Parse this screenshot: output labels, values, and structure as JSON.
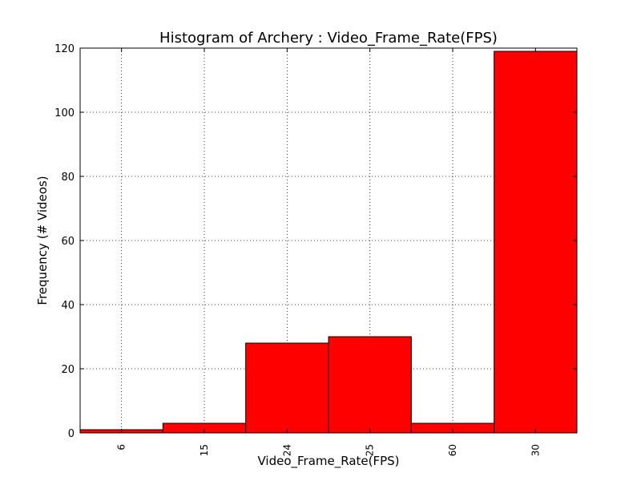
{
  "chart_data": {
    "type": "bar",
    "title": "Histogram of Archery : Video_Frame_Rate(FPS)",
    "xlabel": "Video_Frame_Rate(FPS)",
    "ylabel": "Frequency (# Videos)",
    "categories": [
      "6",
      "15",
      "24",
      "25",
      "60",
      "30"
    ],
    "values": [
      1,
      3,
      28,
      30,
      3,
      119
    ],
    "ylim": [
      0,
      120
    ],
    "yticks": [
      "0",
      "20",
      "40",
      "60",
      "80",
      "100",
      "120"
    ],
    "grid": true,
    "bar_color": "#ff0000"
  }
}
